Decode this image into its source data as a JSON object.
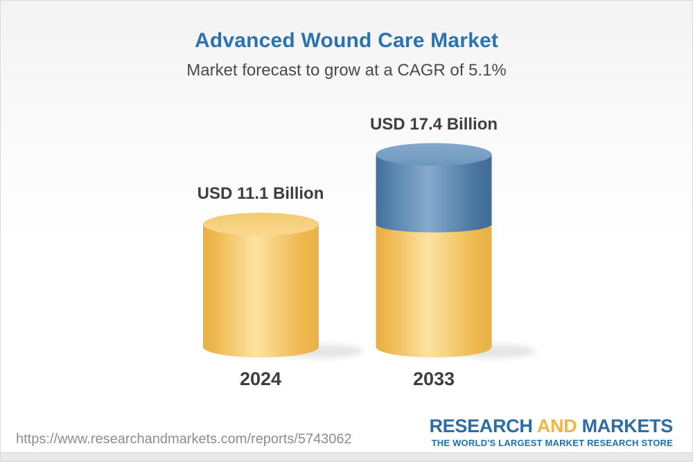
{
  "chart_data": {
    "type": "bar",
    "title": "Advanced Wound Care Market",
    "subtitle": "Market forecast to grow at a CAGR of 5.1%",
    "unit": "USD Billion",
    "cagr_percent": 5.1,
    "categories": [
      "2024",
      "2033"
    ],
    "values": [
      11.1,
      17.4
    ],
    "ylim": [
      0,
      17.4
    ],
    "grid": false,
    "legend": false,
    "bars": [
      {
        "category": "2024",
        "value": 11.1,
        "value_label": "USD 11.1 Billion",
        "segments": [
          {
            "name": "base",
            "value": 11.1,
            "color": "#f0bd55"
          }
        ]
      },
      {
        "category": "2033",
        "value": 17.4,
        "value_label": "USD 17.4 Billion",
        "segments": [
          {
            "name": "base",
            "value": 11.1,
            "color": "#f0bd55"
          },
          {
            "name": "growth",
            "value": 6.3,
            "color": "#5d89b4"
          }
        ]
      }
    ],
    "colors": {
      "title": "#2a73b0",
      "subtitle_text": "#4a4a4a",
      "label_text": "#3e3e3e",
      "base_segment": "#f0bd55",
      "growth_segment": "#5d89b4"
    }
  },
  "footer": {
    "url": "https://www.researchandmarkets.com/reports/5743062",
    "logo": {
      "word1": "RESEARCH",
      "word2": "AND",
      "word3": "MARKETS",
      "tagline": "THE WORLD'S LARGEST MARKET RESEARCH STORE",
      "colors": {
        "blue": "#2d6ca4",
        "gold": "#f1b544",
        "tagline_blue": "#1e6fad"
      }
    }
  }
}
